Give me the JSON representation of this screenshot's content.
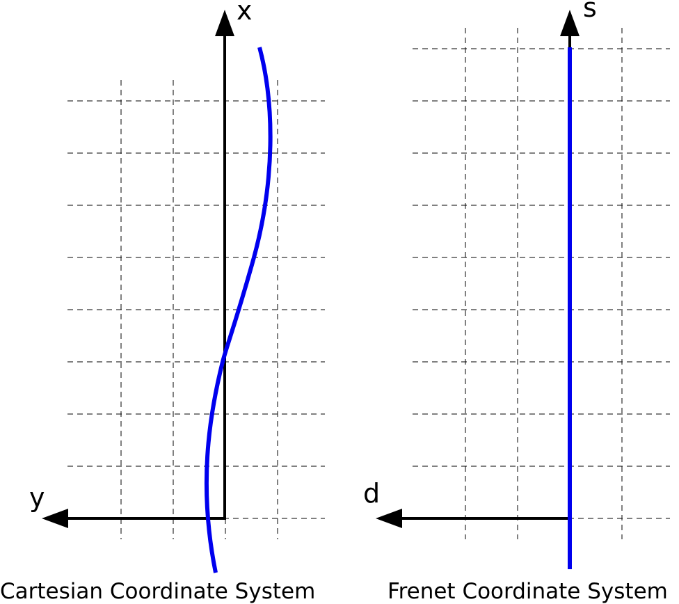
{
  "left": {
    "vertical_axis": "x",
    "horizontal_axis": "y",
    "caption": "Cartesian Coordinate System"
  },
  "right": {
    "vertical_axis": "s",
    "horizontal_axis": "d",
    "caption": "Frenet Coordinate System"
  }
}
